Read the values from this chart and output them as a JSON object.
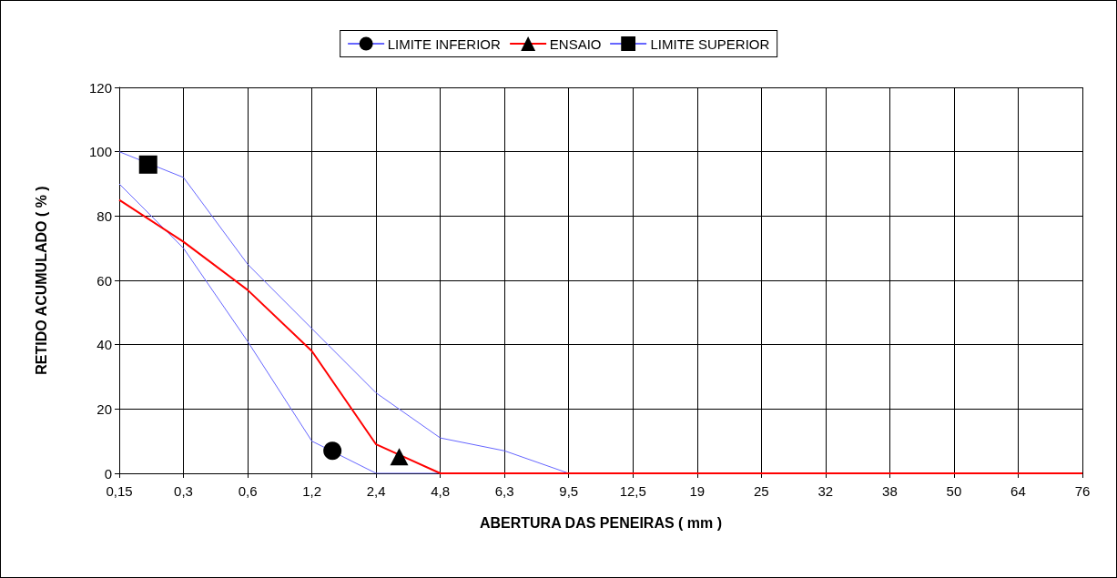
{
  "chart_data": {
    "type": "line",
    "xlabel": "ABERTURA DAS PENEIRAS ( mm )",
    "ylabel": "RETIDO ACUMULADO ( % )",
    "categories": [
      "0,15",
      "0,3",
      "0,6",
      "1,2",
      "2,4",
      "4,8",
      "6,3",
      "9,5",
      "12,5",
      "19",
      "25",
      "32",
      "38",
      "50",
      "64",
      "76"
    ],
    "series": [
      {
        "name": "LIMITE INFERIOR",
        "color": "#6666ff",
        "values": [
          90,
          70,
          41,
          10,
          0,
          0,
          null,
          null,
          null,
          null,
          null,
          null,
          null,
          null,
          null,
          null
        ]
      },
      {
        "name": "ENSAIO",
        "color": "#ff0000",
        "values": [
          85,
          72,
          57,
          38,
          9,
          0,
          0,
          0,
          0,
          0,
          0,
          0,
          0,
          0,
          0,
          0
        ]
      },
      {
        "name": "LIMITE SUPERIOR",
        "color": "#6666ff",
        "values": [
          100,
          92,
          65,
          45,
          25,
          11,
          7,
          0,
          null,
          null,
          null,
          null,
          null,
          null,
          null,
          null
        ]
      }
    ],
    "ylim": [
      0,
      120
    ],
    "yticks": [
      0,
      20,
      40,
      60,
      80,
      100,
      120
    ],
    "grid": true,
    "legend": "top"
  }
}
